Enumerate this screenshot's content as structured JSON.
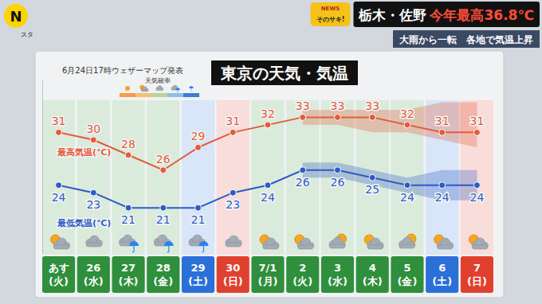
{
  "header": {
    "logo": "N",
    "logo_sub": "スタ",
    "badge_top": "NEWS",
    "badge": "そのサキ!",
    "headline": [
      "栃木・佐野",
      "今年最高36.8℃"
    ],
    "subheadline": "大雨から一転　各地で気温上昇"
  },
  "chart_data": {
    "type": "line",
    "title": "東京の天気・気温",
    "subtitle": "6月24日17時ウェザーマップ発表",
    "annotations": [
      "天気確率"
    ],
    "categories": [
      "あす(火)",
      "26(水)",
      "27(木)",
      "28(金)",
      "29(土)",
      "30(日)",
      "7/1(月)",
      "2(火)",
      "3(水)",
      "4(木)",
      "5(金)",
      "6(土)",
      "7(日)"
    ],
    "colors": [
      "#2f8f3c",
      "#2f8f3c",
      "#2f8f3c",
      "#2f8f3c",
      "#2b6fd8",
      "#e0412f",
      "#2f8f3c",
      "#2f8f3c",
      "#2f8f3c",
      "#2f8f3c",
      "#2f8f3c",
      "#2b6fd8",
      "#e0412f"
    ],
    "series": [
      {
        "name": "最高気温(℃)",
        "color": "#e35b3c",
        "values": [
          31,
          30,
          28,
          26,
          29,
          31,
          32,
          33,
          33,
          33,
          32,
          31,
          31
        ],
        "range_low": [
          null,
          null,
          null,
          null,
          null,
          null,
          null,
          32,
          32,
          31,
          31,
          30,
          29
        ],
        "range_high": [
          null,
          null,
          null,
          null,
          null,
          null,
          null,
          34,
          34,
          34,
          34,
          35,
          35
        ]
      },
      {
        "name": "最低気温(℃)",
        "color": "#2d5bc4",
        "values": [
          24,
          23,
          21,
          21,
          21,
          23,
          24,
          26,
          26,
          25,
          24,
          24,
          24
        ],
        "range_low": [
          null,
          null,
          null,
          null,
          null,
          null,
          null,
          25,
          25,
          24,
          23,
          22,
          22
        ],
        "range_high": [
          null,
          null,
          null,
          null,
          null,
          null,
          null,
          27,
          27,
          26,
          25,
          26,
          26
        ]
      }
    ],
    "ylim": [
      15,
      38
    ],
    "tick_labels": "x",
    "data_labels": true,
    "marker": "circle",
    "grid": false
  }
}
